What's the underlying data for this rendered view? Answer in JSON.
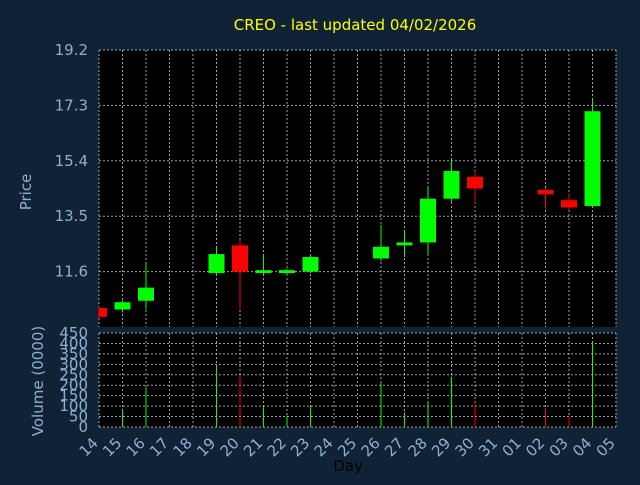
{
  "colors": {
    "background": "#0f2236",
    "panel": "#000000",
    "grid": "#c8c8c8",
    "axis_text": "#8fb0cf",
    "title": "#ffff00",
    "up": "#00ff00",
    "down": "#ff0000"
  },
  "chart_data": {
    "type": "candlestick",
    "title": "CREO - last updated 04/02/2026",
    "xlabel": "Day",
    "price_ylabel": "Price",
    "volume_ylabel": "Volume (0000)",
    "price_ylim": [
      9.7,
      19.2
    ],
    "price_ticks": [
      "19.2",
      "17.3",
      "15.4",
      "13.5",
      "11.6"
    ],
    "volume_ylim": [
      0,
      450
    ],
    "volume_ticks": [
      "450",
      "400",
      "350",
      "300",
      "250",
      "200",
      "150",
      "100",
      "50",
      "0"
    ],
    "x_labels": [
      "14",
      "15",
      "16",
      "17",
      "18",
      "19",
      "20",
      "21",
      "22",
      "23",
      "24",
      "25",
      "26",
      "27",
      "28",
      "29",
      "30",
      "31",
      "01",
      "02",
      "03",
      "04",
      "05"
    ],
    "candles": [
      {
        "day": "14",
        "open": 10.35,
        "close": 10.05,
        "high": 10.4,
        "low": 10.0,
        "volume": 0
      },
      {
        "day": "15",
        "open": 10.3,
        "close": 10.55,
        "high": 10.6,
        "low": 10.2,
        "volume": 80
      },
      {
        "day": "16",
        "open": 10.6,
        "close": 11.05,
        "high": 11.9,
        "low": 10.3,
        "volume": 190
      },
      {
        "day": "19",
        "open": 11.55,
        "close": 12.2,
        "high": 12.45,
        "low": 11.45,
        "volume": 290
      },
      {
        "day": "20",
        "open": 12.5,
        "close": 11.6,
        "high": 12.7,
        "low": 10.3,
        "volume": 245
      },
      {
        "day": "21",
        "open": 11.55,
        "close": 11.65,
        "high": 12.2,
        "low": 11.5,
        "volume": 95
      },
      {
        "day": "22",
        "open": 11.55,
        "close": 11.65,
        "high": 11.7,
        "low": 11.45,
        "volume": 55
      },
      {
        "day": "23",
        "open": 11.6,
        "close": 12.1,
        "high": 12.15,
        "low": 11.55,
        "volume": 95
      },
      {
        "day": "26",
        "open": 12.05,
        "close": 12.45,
        "high": 13.2,
        "low": 11.95,
        "volume": 210
      },
      {
        "day": "27",
        "open": 12.5,
        "close": 12.6,
        "high": 13.0,
        "low": 12.1,
        "volume": 70
      },
      {
        "day": "28",
        "open": 12.6,
        "close": 14.1,
        "high": 14.5,
        "low": 12.2,
        "volume": 120
      },
      {
        "day": "29",
        "open": 14.1,
        "close": 15.05,
        "high": 15.5,
        "low": 14.0,
        "volume": 240
      },
      {
        "day": "30",
        "open": 14.85,
        "close": 14.45,
        "high": 15.05,
        "low": 13.95,
        "volume": 110
      },
      {
        "day": "02",
        "open": 14.4,
        "close": 14.25,
        "high": 14.45,
        "low": 13.75,
        "volume": 90
      },
      {
        "day": "03",
        "open": 14.05,
        "close": 13.8,
        "high": 14.25,
        "low": 13.7,
        "volume": 55
      },
      {
        "day": "04",
        "open": 13.85,
        "close": 17.1,
        "high": 17.5,
        "low": 13.8,
        "volume": 410
      }
    ]
  }
}
